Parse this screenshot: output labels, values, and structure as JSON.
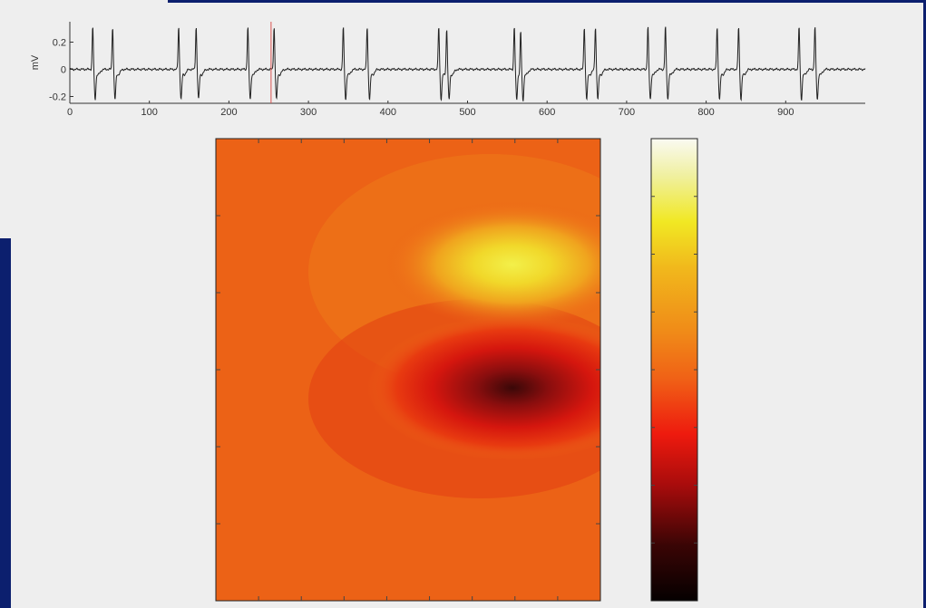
{
  "chart_data": [
    {
      "type": "line",
      "ylabel": "mV",
      "xlim": [
        0,
        1000
      ],
      "ylim": [
        -0.25,
        0.35
      ],
      "x_ticks": [
        0,
        100,
        200,
        300,
        400,
        500,
        600,
        700,
        800,
        900
      ],
      "x_tick_labels": [
        "0",
        "100",
        "200",
        "300",
        "400",
        "500",
        "600",
        "700",
        "800",
        "900"
      ],
      "y_ticks": [
        0.2,
        0,
        -0.2
      ],
      "y_tick_labels": [
        "0.2",
        "0",
        "-0.2"
      ],
      "marker_x": 253,
      "marker_color": "#d9534f",
      "line_color": "#222222",
      "beats": [
        {
          "x": 30,
          "pattern": "biphasic"
        },
        {
          "x": 55,
          "pattern": "biphasic"
        },
        {
          "x": 138,
          "pattern": "biphasic"
        },
        {
          "x": 160,
          "pattern": "biphasic"
        },
        {
          "x": 225,
          "pattern": "biphasic"
        },
        {
          "x": 258,
          "pattern": "biphasic"
        },
        {
          "x": 345,
          "pattern": "biphasic"
        },
        {
          "x": 375,
          "pattern": "biphasic"
        },
        {
          "x": 465,
          "pattern": "biphasic"
        },
        {
          "x": 475,
          "pattern": "biphasic"
        },
        {
          "x": 560,
          "pattern": "biphasic"
        },
        {
          "x": 568,
          "pattern": "biphasic"
        },
        {
          "x": 648,
          "pattern": "biphasic"
        },
        {
          "x": 662,
          "pattern": "biphasic"
        },
        {
          "x": 728,
          "pattern": "biphasic"
        },
        {
          "x": 750,
          "pattern": "biphasic"
        },
        {
          "x": 815,
          "pattern": "biphasic"
        },
        {
          "x": 842,
          "pattern": "biphasic"
        },
        {
          "x": 918,
          "pattern": "biphasic"
        },
        {
          "x": 938,
          "pattern": "biphasic"
        }
      ]
    },
    {
      "type": "heatmap",
      "colormap": "hot",
      "peak": {
        "x": 0.78,
        "y": 0.28,
        "value": 0.85
      },
      "trough": {
        "x": 0.78,
        "y": 0.55,
        "value": 0.12
      },
      "background_value": 0.5,
      "y_tick_count": 5,
      "x_tick_count": 8
    },
    {
      "type": "colorbar",
      "colormap": "hot",
      "ticks": 7
    }
  ]
}
